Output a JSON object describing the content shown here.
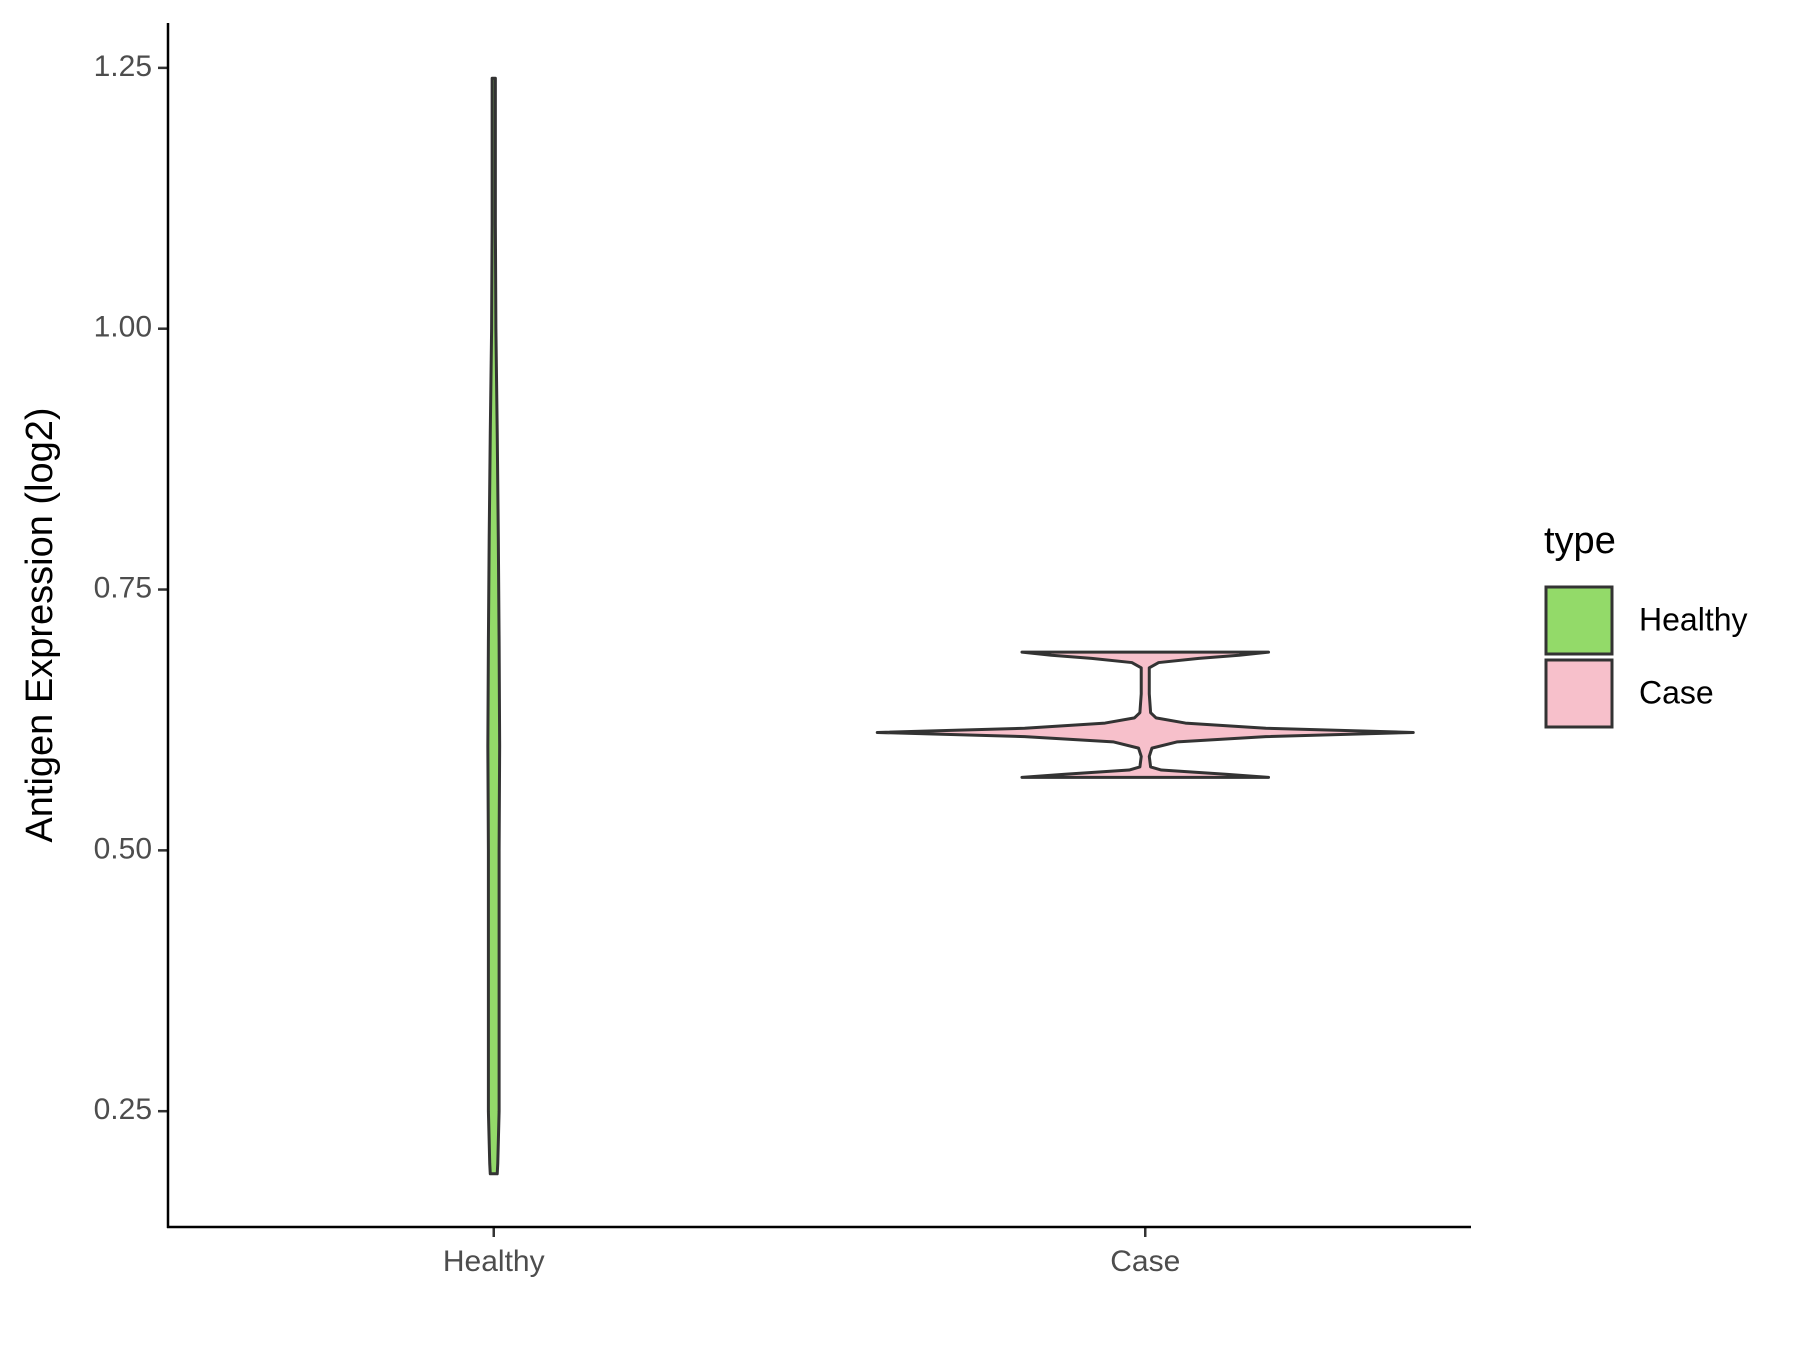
{
  "chart_data": {
    "type": "violin",
    "y_label": "Antigen Expression (log2)",
    "categories": [
      "Healthy",
      "Case"
    ],
    "legend_title": "type",
    "legend": "right",
    "ylim": [
      0.139,
      1.293
    ],
    "yticks": [
      0.25,
      {
        "value": 0.5,
        "label": "0.50"
      },
      0.75,
      {
        "value": 1,
        "label": "1.00"
      },
      1.25
    ],
    "series": [
      {
        "name": "Healthy",
        "color": "#93da69",
        "y": [
          0.19,
          0.2,
          0.25,
          0.35,
          0.5,
          0.6,
          0.7,
          0.8,
          0.9,
          1.0,
          1.1,
          1.24
        ],
        "density": [
          0.013,
          0.015,
          0.02,
          0.02,
          0.02,
          0.022,
          0.02,
          0.017,
          0.013,
          0.008,
          0.006,
          0.006
        ]
      },
      {
        "name": "Case",
        "color": "#f7c0cb",
        "y": [
          0.57,
          0.573,
          0.577,
          0.58,
          0.59,
          0.598,
          0.604,
          0.609,
          0.613,
          0.617,
          0.622,
          0.627,
          0.632,
          0.65,
          0.675,
          0.68,
          0.684,
          0.687,
          0.69
        ],
        "density": [
          0.46,
          0.3,
          0.06,
          0.02,
          0.015,
          0.025,
          0.12,
          0.45,
          1,
          0.45,
          0.15,
          0.04,
          0.02,
          0.015,
          0.015,
          0.05,
          0.2,
          0.35,
          0.46
        ]
      }
    ]
  }
}
